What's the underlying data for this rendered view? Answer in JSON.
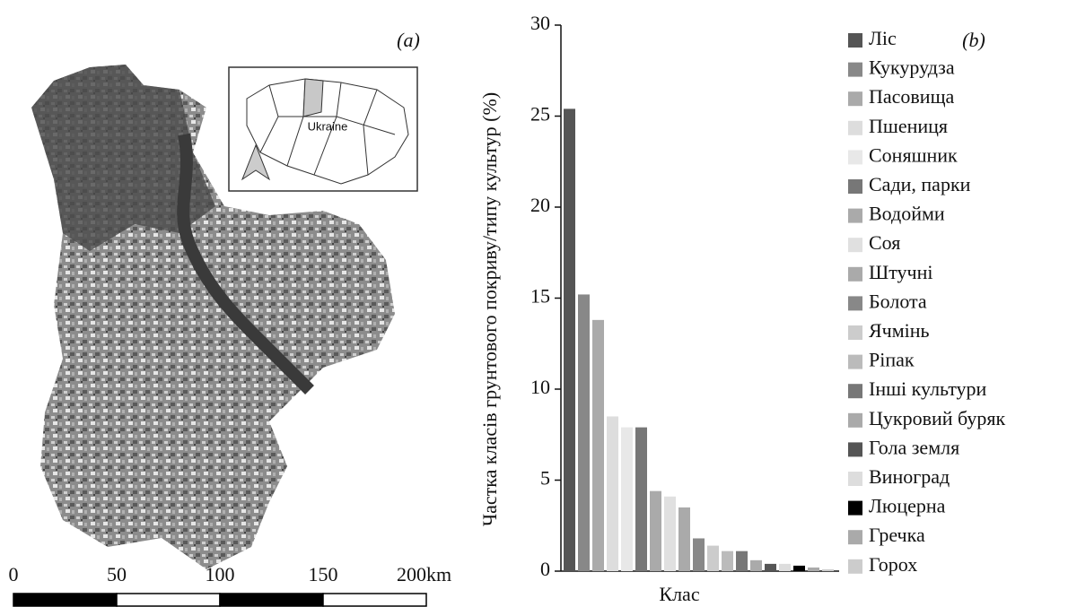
{
  "map": {
    "label": "(a)",
    "inset_label": "Ukraine",
    "scale_ticks": [
      0,
      50,
      100,
      150,
      200
    ],
    "scale_unit": "km"
  },
  "chart_data": {
    "type": "bar",
    "panel_label": "(b)",
    "ylabel": "Частка класів грунтового покриву/типу культур (%)",
    "xlabel": "Клас",
    "categories": [
      "Ліс",
      "Кукурудза",
      "Пасовища",
      "Пшениця",
      "Соняшник",
      "Сади, парки",
      "Водойми",
      "Соя",
      "Штучні",
      "Болота",
      "Ячмінь",
      "Ріпак",
      "Інші культури",
      "Цукровий буряк",
      "Гола земля",
      "Виноград",
      "Люцерна",
      "Гречка",
      "Горох"
    ],
    "values": [
      25.4,
      15.2,
      13.8,
      8.5,
      7.9,
      7.9,
      4.4,
      4.1,
      3.5,
      1.8,
      1.4,
      1.1,
      1.1,
      0.6,
      0.4,
      0.4,
      0.3,
      0.2,
      0.1
    ],
    "colors": [
      "#555555",
      "#888888",
      "#aaaaaa",
      "#dddddd",
      "#e8e8e8",
      "#777777",
      "#aaaaaa",
      "#e0e0e0",
      "#aaaaaa",
      "#888888",
      "#cccccc",
      "#bbbbbb",
      "#777777",
      "#aaaaaa",
      "#555555",
      "#dddddd",
      "#000000",
      "#aaaaaa",
      "#cccccc"
    ],
    "ylim": [
      0,
      30
    ],
    "yticks": [
      0,
      5,
      10,
      15,
      20,
      25,
      30
    ]
  }
}
